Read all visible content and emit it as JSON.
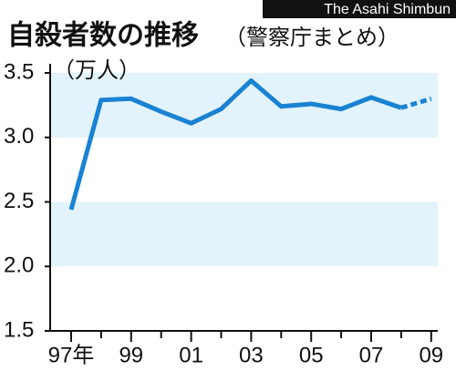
{
  "chart_data": {
    "type": "line",
    "title": "自殺者数の推移",
    "subtitle": "（警察庁まとめ）",
    "credit": "The Asahi Shimbun",
    "y_label": "（万人）",
    "categories": [
      "97年",
      null,
      "99",
      null,
      "01",
      null,
      "03",
      null,
      "05",
      null,
      "07",
      null,
      "09"
    ],
    "values": [
      2.44,
      3.29,
      3.3,
      3.2,
      3.11,
      3.22,
      3.44,
      3.24,
      3.26,
      3.22,
      3.31,
      3.23,
      3.3
    ],
    "dashed_from_index": 11,
    "color": "#1a82d2",
    "band_color": "#e2f3fb",
    "bands": [
      [
        3.0,
        3.5
      ],
      [
        2.0,
        2.5
      ]
    ],
    "ylim": [
      1.5,
      3.5
    ],
    "yticks": [
      1.5,
      {
        "value": 2,
        "label": "2.0"
      },
      2.5,
      {
        "value": 3,
        "label": "3.0"
      },
      3.5
    ]
  }
}
